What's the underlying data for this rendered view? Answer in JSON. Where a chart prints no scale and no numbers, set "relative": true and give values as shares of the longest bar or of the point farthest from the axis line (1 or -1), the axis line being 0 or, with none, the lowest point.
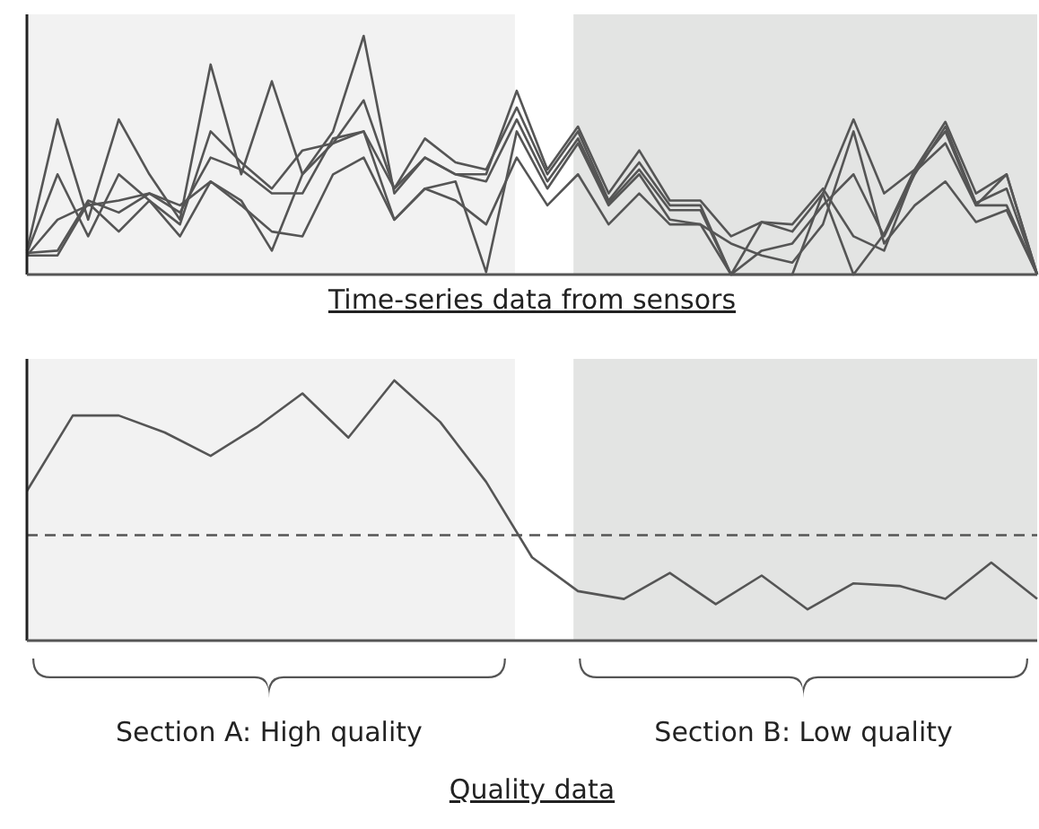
{
  "chart_data": [
    {
      "type": "line",
      "title": "Time-series data from sensors",
      "relative": true,
      "marker": "none",
      "line_style": "solid",
      "categories": [
        null,
        null,
        null,
        null,
        null,
        null,
        null,
        null,
        null,
        null,
        null,
        null,
        null,
        null,
        null,
        null,
        null,
        null,
        null,
        null,
        null,
        null,
        null,
        null,
        null,
        null,
        null,
        null,
        null,
        null,
        null,
        null,
        null,
        null
      ],
      "series": [
        {
          "color": "#555555",
          "values": [
            0.1,
            0.65,
            0.23,
            0.65,
            0.42,
            0.23,
            0.88,
            0.42,
            0.81,
            0.42,
            0.6,
            1,
            0.34,
            0.49,
            0.42,
            0.42,
            0.77,
            0.44,
            0.62,
            0.34,
            0.52,
            0.31,
            0.31,
            0.16,
            0.22,
            0.18,
            0.34,
            0.65,
            0.34,
            0.44,
            0.64,
            0.34,
            0.42,
            0
          ]
        },
        {
          "color": "#555555",
          "values": [
            0.09,
            0.42,
            0.16,
            0.42,
            0.31,
            0.21,
            0.6,
            0.47,
            0.36,
            0.52,
            0.55,
            0.73,
            0.36,
            0.57,
            0.47,
            0.44,
            0.7,
            0.42,
            0.6,
            0.31,
            0.47,
            0.29,
            0.29,
            0,
            0.1,
            0.13,
            0.29,
            0.42,
            0.16,
            0.42,
            0.62,
            0.3,
            0.36,
            0
          ]
        },
        {
          "color": "#555555",
          "values": [
            0.08,
            0.23,
            0.29,
            0.31,
            0.34,
            0.26,
            0.49,
            0.44,
            0.34,
            0.34,
            0.57,
            0.6,
            0.36,
            0.49,
            0.42,
            0.39,
            0.65,
            0.39,
            0.57,
            0.3,
            0.44,
            0.27,
            0.27,
            0,
            0.22,
            0.21,
            0.36,
            0.16,
            0.1,
            0.43,
            0.55,
            0.29,
            0.42,
            0
          ]
        },
        {
          "color": "#555555",
          "values": [
            0.09,
            0.1,
            0.31,
            0.26,
            0.34,
            0.29,
            0.39,
            0.31,
            0.1,
            0.42,
            0.55,
            0.6,
            0.23,
            0.36,
            0.39,
            0.01,
            0.6,
            0.36,
            0.55,
            0.29,
            0.42,
            0.23,
            0.21,
            0,
            0,
            0,
            0.34,
            0,
            0.17,
            0.44,
            0.6,
            0.29,
            0.29,
            0
          ]
        },
        {
          "color": "#555555",
          "values": [
            0.08,
            0.08,
            0.3,
            0.18,
            0.31,
            0.16,
            0.39,
            0.29,
            0.18,
            0.16,
            0.42,
            0.49,
            0.23,
            0.36,
            0.31,
            0.21,
            0.49,
            0.29,
            0.42,
            0.21,
            0.34,
            0.21,
            0.21,
            0.13,
            0.08,
            0.05,
            0.21,
            0.6,
            0.13,
            0.29,
            0.39,
            0.22,
            0.27,
            0
          ]
        }
      ]
    },
    {
      "type": "line",
      "title": "Quality data",
      "relative": true,
      "marker": "none",
      "line_style": "solid",
      "categories": [
        null,
        null,
        null,
        null,
        null,
        null,
        null,
        null,
        null,
        null,
        null,
        null,
        null,
        null,
        null,
        null,
        null,
        null,
        null,
        null,
        null,
        null,
        null
      ],
      "annotations": [
        "Section A: High quality",
        "Section B: Low quality"
      ],
      "ref_lines": [
        {
          "axis": "y",
          "value": 0.405,
          "color": "#555555",
          "line_style": "dashed"
        }
      ],
      "series": [
        {
          "color": "#555555",
          "values": [
            0.575,
            0.865,
            0.865,
            0.8,
            0.71,
            0.82,
            0.95,
            0.78,
            1,
            0.84,
            0.61,
            0.32,
            0.19,
            0.16,
            0.26,
            0.14,
            0.25,
            0.12,
            0.22,
            0.21,
            0.16,
            0.3,
            0.16
          ]
        }
      ]
    }
  ]
}
